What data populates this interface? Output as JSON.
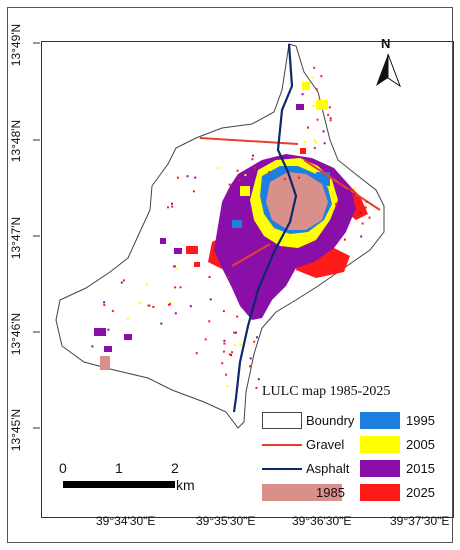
{
  "map": {
    "title": "LULC map 1985-2025",
    "north_label": "N",
    "latitude_labels": [
      "13°49'N",
      "13°48'N",
      "13°47'N",
      "13°46'N",
      "13°45'N"
    ],
    "longitude_labels": [
      "39°34'30\"E",
      "39°35'30\"E",
      "39°36'30\"E",
      "39°37'30\"E"
    ],
    "scale_bar": {
      "ticks": [
        "0",
        "1",
        "2"
      ],
      "unit": "km"
    },
    "legend": [
      {
        "label": "Boundry",
        "kind": "box",
        "color": "#ffffff"
      },
      {
        "label": "1995",
        "kind": "fill",
        "color": "#1f7fe0"
      },
      {
        "label": "Gravel",
        "kind": "line",
        "color": "#e8412b"
      },
      {
        "label": "2005",
        "kind": "fill",
        "color": "#ffff00"
      },
      {
        "label": "Asphalt",
        "kind": "line",
        "color": "#0b2a6b"
      },
      {
        "label": "2015",
        "kind": "fill",
        "color": "#8a0fa8"
      },
      {
        "label": "1985",
        "kind": "fill",
        "color": "#d98f8a"
      },
      {
        "label": "2025",
        "kind": "fill",
        "color": "#ff1a1a"
      }
    ],
    "colors": {
      "c1985": "#d98f8a",
      "c1995": "#1f7fe0",
      "c2005": "#ffff00",
      "c2015": "#8a0fa8",
      "c2025": "#ff1a1a",
      "gravel": "#e8412b",
      "asphalt": "#0b2a6b",
      "boundary": "#444444"
    }
  }
}
